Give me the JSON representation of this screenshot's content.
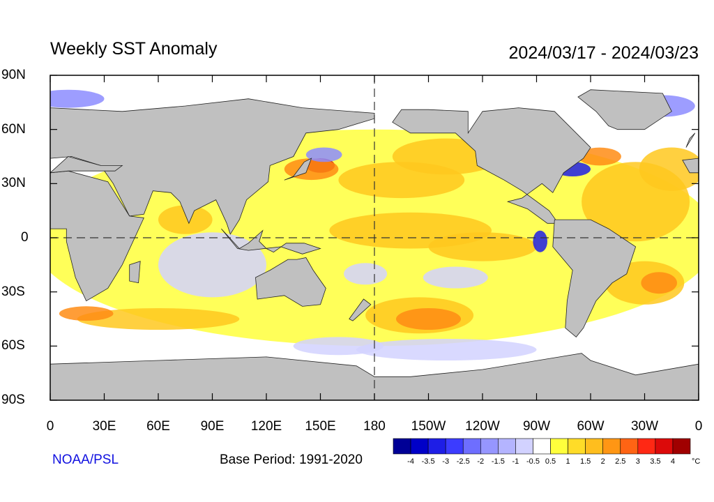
{
  "header": {
    "title": "Weekly SST Anomaly",
    "date_range": "2024/03/17 - 2024/03/23"
  },
  "axes": {
    "lat_ticks": [
      "90N",
      "60N",
      "30N",
      "0",
      "30S",
      "60S",
      "90S"
    ],
    "lon_ticks": [
      "0",
      "30E",
      "60E",
      "90E",
      "120E",
      "150E",
      "180",
      "150W",
      "120W",
      "90W",
      "60W",
      "30W",
      "0"
    ]
  },
  "footer": {
    "credit": "NOAA/PSL",
    "base_period": "Base Period: 1991-2020"
  },
  "colorbar": {
    "labels": [
      "-4",
      "-3.5",
      "-3",
      "-2.5",
      "-2",
      "-1.5",
      "-1",
      "-0.5",
      "0.5",
      "1",
      "1.5",
      "2",
      "2.5",
      "3",
      "3.5",
      "4"
    ],
    "unit": "°C",
    "colors": [
      "#000096",
      "#0000c8",
      "#1e1ee6",
      "#3c3cff",
      "#6e6eff",
      "#9696ff",
      "#b4b4ff",
      "#d2d2ff",
      "#ffffff",
      "#ffff3c",
      "#ffdc28",
      "#ffbe1e",
      "#ff9614",
      "#ff6414",
      "#ff2814",
      "#dc0a0a",
      "#a00000"
    ]
  },
  "map": {
    "land_color": "#c0c0c0",
    "ocean_neutral_color": "#ffffff",
    "anomaly_colors": {
      "weak_warm": "#ffff3c",
      "moderate_warm": "#ffc81e",
      "strong_warm": "#ff8c14",
      "very_strong_warm": "#c80000",
      "weak_cool": "#d2d2ff",
      "moderate_cool": "#8c8cff",
      "strong_cool": "#1e1ee6"
    }
  }
}
